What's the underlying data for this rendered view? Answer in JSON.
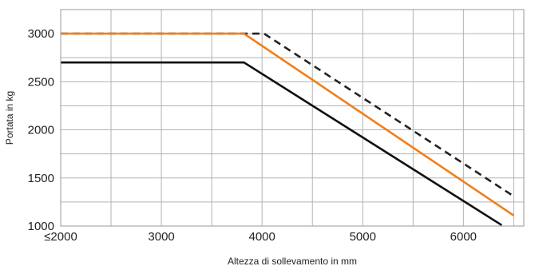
{
  "chart_data": {
    "type": "line",
    "title": "",
    "xlabel": "Altezza di sollevamento in mm",
    "ylabel": "Portata in kg",
    "xlim": [
      2000,
      6600
    ],
    "ylim": [
      1000,
      3250
    ],
    "x_ticks": [
      {
        "value": 2000,
        "label": "≤2000"
      },
      {
        "value": 3000,
        "label": "3000"
      },
      {
        "value": 4000,
        "label": "4000"
      },
      {
        "value": 5000,
        "label": "5000"
      },
      {
        "value": 6000,
        "label": "6000"
      }
    ],
    "x_gridlines": [
      2000,
      2500,
      3000,
      3500,
      4000,
      4500,
      5000,
      5500,
      6000,
      6500,
      6600
    ],
    "y_ticks": [
      1000,
      1500,
      2000,
      2500,
      3000
    ],
    "y_gridlines": [
      1000,
      1250,
      1500,
      1750,
      2000,
      2250,
      2500,
      2750,
      3000,
      3250
    ],
    "grid": true,
    "series": [
      {
        "color": "#222222",
        "dash": "dashed",
        "points": [
          [
            2000,
            3000
          ],
          [
            4020,
            3000
          ],
          [
            6500,
            1310
          ]
        ]
      },
      {
        "color": "#f07f1a",
        "dash": "solid",
        "points": [
          [
            2000,
            3000
          ],
          [
            3820,
            3000
          ],
          [
            6500,
            1110
          ]
        ]
      },
      {
        "color": "#111111",
        "dash": "solid",
        "points": [
          [
            2000,
            2700
          ],
          [
            3820,
            2700
          ],
          [
            6380,
            1010
          ]
        ]
      }
    ]
  }
}
